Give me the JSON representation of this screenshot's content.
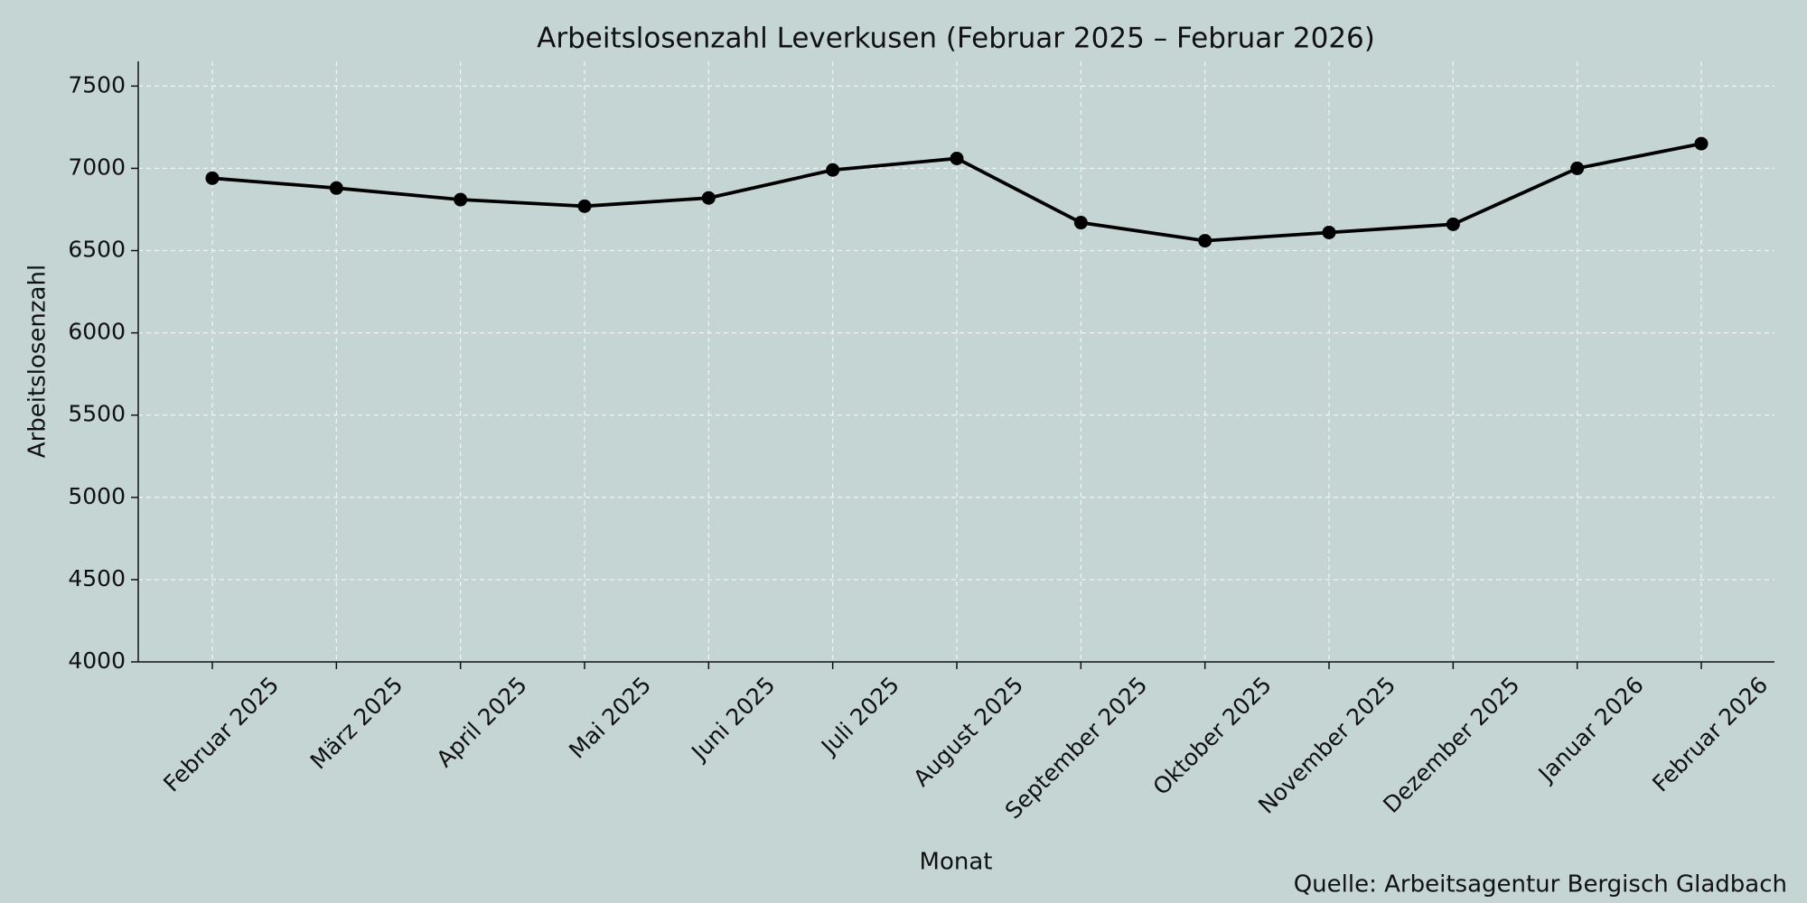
{
  "chart_data": {
    "type": "line",
    "title": "Arbeitslosenzahl Leverkusen (Februar 2025 – Februar 2026)",
    "x_label": "Monat",
    "y_label": "Arbeitslosenzahl",
    "source": "Quelle: Arbeitsagentur Bergisch Gladbach",
    "categories": [
      "Februar 2025",
      "März 2025",
      "April 2025",
      "Mai 2025",
      "Juni 2025",
      "Juli 2025",
      "August 2025",
      "September 2025",
      "Oktober 2025",
      "November 2025",
      "Dezember 2025",
      "Januar 2026",
      "Februar 2026"
    ],
    "values": [
      6940,
      6880,
      6810,
      6770,
      6820,
      6990,
      7060,
      6670,
      6560,
      6610,
      6660,
      7000,
      7150
    ],
    "color": "#000000",
    "ylim": [
      4000,
      7650
    ],
    "yticks": [
      4000,
      4500,
      5000,
      5500,
      6000,
      6500,
      7000,
      7500
    ],
    "grid": true
  }
}
